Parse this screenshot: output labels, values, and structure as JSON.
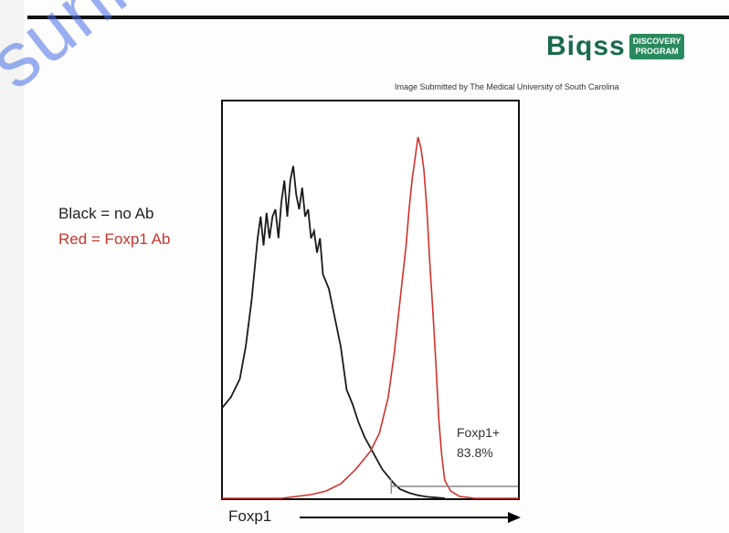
{
  "watermark": "sunlong",
  "logo": {
    "text": "Biqss",
    "badge_top": "DISCOVERY",
    "badge_bottom": "PROGRAM"
  },
  "credit": "Image Submitted by The Medical University of South Carolina",
  "legend": {
    "black": "Black = no Ab",
    "red": "Red = Foxp1 Ab"
  },
  "colors": {
    "black_series": "#1a1a1a",
    "red_series": "#d0322b",
    "gate": "#888888"
  },
  "chart_data": {
    "type": "line",
    "title": "",
    "xlabel": "Foxp1",
    "ylabel": "",
    "xlim": [
      0,
      100
    ],
    "ylim": [
      0,
      100
    ],
    "series": [
      {
        "name": "Black = no Ab",
        "x": [
          0,
          3,
          6,
          8,
          10,
          12,
          13,
          14,
          15,
          16,
          17,
          18,
          19,
          20,
          21,
          22,
          23,
          24,
          25,
          26,
          27,
          28,
          29,
          30,
          31,
          32,
          33,
          34,
          35,
          36,
          38,
          40,
          42,
          44,
          46,
          48,
          50,
          52,
          54,
          56,
          58,
          60,
          63,
          66,
          69,
          72,
          75
        ],
        "y": [
          25,
          28,
          33,
          42,
          55,
          72,
          78,
          70,
          79,
          72,
          78,
          80,
          72,
          82,
          88,
          78,
          88,
          92,
          84,
          80,
          86,
          78,
          80,
          72,
          74,
          68,
          72,
          62,
          60,
          58,
          50,
          42,
          30,
          26,
          21,
          17,
          14,
          11,
          8,
          6,
          4,
          2.5,
          1.5,
          0.8,
          0.4,
          0.2,
          0
        ]
      },
      {
        "name": "Red = Foxp1 Ab",
        "x": [
          0,
          10,
          20,
          25,
          30,
          35,
          40,
          45,
          50,
          53,
          56,
          58,
          60,
          62,
          63,
          64,
          65,
          66,
          67,
          68,
          69,
          70,
          71,
          72,
          73,
          74,
          75,
          77,
          80,
          85,
          90,
          100
        ],
        "y": [
          0,
          0,
          0,
          0.5,
          1,
          2,
          4,
          8,
          13,
          18,
          28,
          40,
          55,
          70,
          80,
          88,
          94,
          100,
          97,
          91,
          80,
          65,
          52,
          38,
          22,
          12,
          5,
          2,
          0.5,
          0,
          0,
          0
        ]
      }
    ],
    "gate": {
      "label": "Foxp1+",
      "value": "83.8%",
      "x_start": 57,
      "x_end": 100
    }
  }
}
